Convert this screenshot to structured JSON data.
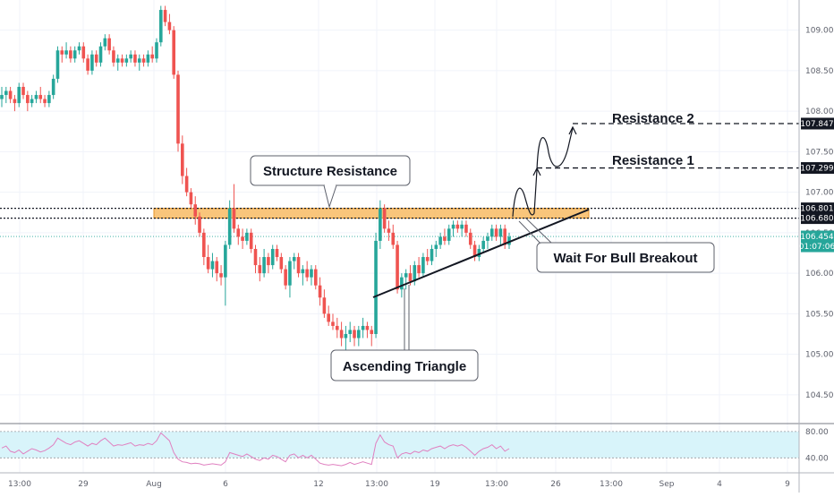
{
  "chart_data": {
    "type": "candlestick",
    "title": "",
    "ylim": [
      104.2,
      109.35
    ],
    "y_ticks": [
      "109.000",
      "108.500",
      "108.000",
      "107.500",
      "107.000",
      "106.500",
      "106.000",
      "105.500",
      "105.000",
      "104.500"
    ],
    "x_ticks": [
      "13:00",
      "29",
      "Aug",
      "6",
      "12",
      "13:00",
      "19",
      "13:00",
      "26",
      "13:00",
      "Sep",
      "4",
      "9"
    ],
    "price_tags": {
      "resistance_2": "107.847",
      "resistance_1": "107.299",
      "zone_top": "106.801",
      "zone_bottom": "106.680",
      "current_price": "106.454",
      "countdown": "01:07:06"
    },
    "levels": {
      "resistance_2": 107.847,
      "resistance_1": 107.299,
      "zone_top": 106.801,
      "zone_bottom": 106.68,
      "current_price": 106.454
    },
    "annotations": {
      "structure_resistance": "Structure Resistance",
      "ascending_triangle": "Ascending Triangle",
      "wait_breakout": "Wait For Bull Breakout",
      "resistance_1": "Resistance 1",
      "resistance_2": "Resistance 2"
    },
    "candles_ohlc": [
      [
        108.15,
        108.3,
        108.05,
        108.2
      ],
      [
        108.2,
        108.3,
        108.1,
        108.25
      ],
      [
        108.25,
        108.3,
        108.1,
        108.15
      ],
      [
        108.15,
        108.2,
        108.0,
        108.1
      ],
      [
        108.1,
        108.35,
        108.05,
        108.3
      ],
      [
        108.3,
        108.35,
        108.15,
        108.2
      ],
      [
        108.2,
        108.25,
        108.0,
        108.1
      ],
      [
        108.1,
        108.2,
        108.05,
        108.15
      ],
      [
        108.15,
        108.25,
        108.1,
        108.2
      ],
      [
        108.2,
        108.3,
        108.1,
        108.15
      ],
      [
        108.15,
        108.2,
        108.05,
        108.1
      ],
      [
        108.1,
        108.25,
        108.05,
        108.2
      ],
      [
        108.2,
        108.45,
        108.15,
        108.4
      ],
      [
        108.4,
        108.8,
        108.35,
        108.75
      ],
      [
        108.75,
        108.8,
        108.6,
        108.7
      ],
      [
        108.7,
        108.85,
        108.65,
        108.75
      ],
      [
        108.75,
        108.8,
        108.6,
        108.65
      ],
      [
        108.65,
        108.8,
        108.6,
        108.75
      ],
      [
        108.75,
        108.85,
        108.7,
        108.8
      ],
      [
        108.8,
        108.85,
        108.6,
        108.65
      ],
      [
        108.65,
        108.7,
        108.45,
        108.5
      ],
      [
        108.5,
        108.75,
        108.45,
        108.7
      ],
      [
        108.7,
        108.75,
        108.55,
        108.6
      ],
      [
        108.6,
        108.85,
        108.55,
        108.8
      ],
      [
        108.8,
        108.95,
        108.75,
        108.9
      ],
      [
        108.9,
        108.95,
        108.7,
        108.75
      ],
      [
        108.75,
        108.8,
        108.55,
        108.6
      ],
      [
        108.6,
        108.7,
        108.5,
        108.65
      ],
      [
        108.65,
        108.7,
        108.55,
        108.6
      ],
      [
        108.6,
        108.7,
        108.55,
        108.65
      ],
      [
        108.65,
        108.75,
        108.6,
        108.7
      ],
      [
        108.7,
        108.75,
        108.55,
        108.6
      ],
      [
        108.6,
        108.7,
        108.5,
        108.65
      ],
      [
        108.65,
        108.7,
        108.55,
        108.6
      ],
      [
        108.6,
        108.75,
        108.55,
        108.7
      ],
      [
        108.7,
        108.8,
        108.6,
        108.65
      ],
      [
        108.65,
        108.9,
        108.6,
        108.85
      ],
      [
        108.85,
        109.3,
        108.8,
        109.25
      ],
      [
        109.25,
        109.3,
        109.05,
        109.1
      ],
      [
        109.1,
        109.2,
        108.95,
        109.0
      ],
      [
        109.0,
        109.05,
        108.4,
        108.45
      ],
      [
        108.45,
        108.5,
        107.5,
        107.6
      ],
      [
        107.6,
        107.7,
        107.1,
        107.2
      ],
      [
        107.2,
        107.3,
        106.95,
        107.0
      ],
      [
        107.0,
        107.05,
        106.8,
        106.85
      ],
      [
        106.85,
        106.95,
        106.6,
        106.7
      ],
      [
        106.7,
        106.75,
        106.45,
        106.5
      ],
      [
        106.5,
        106.55,
        106.1,
        106.2
      ],
      [
        106.2,
        106.35,
        106.0,
        106.05
      ],
      [
        106.05,
        106.25,
        105.95,
        106.15
      ],
      [
        106.15,
        106.2,
        105.9,
        106.0
      ],
      [
        106.0,
        106.1,
        105.85,
        105.95
      ],
      [
        105.95,
        106.4,
        105.6,
        106.35
      ],
      [
        106.35,
        106.9,
        106.3,
        106.8
      ],
      [
        106.8,
        107.1,
        106.5,
        106.55
      ],
      [
        106.55,
        106.6,
        106.35,
        106.45
      ],
      [
        106.45,
        106.55,
        106.3,
        106.4
      ],
      [
        106.4,
        106.55,
        106.35,
        106.5
      ],
      [
        106.5,
        106.55,
        106.25,
        106.3
      ],
      [
        106.3,
        106.35,
        106.0,
        106.1
      ],
      [
        106.1,
        106.2,
        105.9,
        106.0
      ],
      [
        106.0,
        106.3,
        105.95,
        106.2
      ],
      [
        106.2,
        106.25,
        106.0,
        106.1
      ],
      [
        106.1,
        106.35,
        106.05,
        106.3
      ],
      [
        106.3,
        106.35,
        106.15,
        106.2
      ],
      [
        106.2,
        106.25,
        106.0,
        106.05
      ],
      [
        106.05,
        106.1,
        105.8,
        105.85
      ],
      [
        105.85,
        106.2,
        105.7,
        106.15
      ],
      [
        106.15,
        106.25,
        106.05,
        106.2
      ],
      [
        106.2,
        106.25,
        105.95,
        106.0
      ],
      [
        106.0,
        106.1,
        105.85,
        106.05
      ],
      [
        106.05,
        106.15,
        105.9,
        105.95
      ],
      [
        105.95,
        106.1,
        105.85,
        106.05
      ],
      [
        106.05,
        106.1,
        105.8,
        105.85
      ],
      [
        105.85,
        105.95,
        105.6,
        105.7
      ],
      [
        105.7,
        105.8,
        105.45,
        105.5
      ],
      [
        105.5,
        105.6,
        105.35,
        105.4
      ],
      [
        105.4,
        105.5,
        105.3,
        105.35
      ],
      [
        105.35,
        105.45,
        105.2,
        105.3
      ],
      [
        105.3,
        105.4,
        105.1,
        105.2
      ],
      [
        105.2,
        105.35,
        105.05,
        105.25
      ],
      [
        105.25,
        105.4,
        105.15,
        105.3
      ],
      [
        105.3,
        105.35,
        105.1,
        105.2
      ],
      [
        105.2,
        105.35,
        105.1,
        105.3
      ],
      [
        105.3,
        105.45,
        105.2,
        105.35
      ],
      [
        105.35,
        105.4,
        105.2,
        105.3
      ],
      [
        105.3,
        105.35,
        105.1,
        105.25
      ],
      [
        105.25,
        106.5,
        105.2,
        106.4
      ],
      [
        106.4,
        106.9,
        106.3,
        106.8
      ],
      [
        106.8,
        106.85,
        106.5,
        106.55
      ],
      [
        106.55,
        106.65,
        106.4,
        106.5
      ],
      [
        106.5,
        106.6,
        106.3,
        106.35
      ],
      [
        106.35,
        106.4,
        105.75,
        105.8
      ],
      [
        105.8,
        106.0,
        105.7,
        105.95
      ],
      [
        105.95,
        106.05,
        105.8,
        106.0
      ],
      [
        106.0,
        106.1,
        105.85,
        105.9
      ],
      [
        105.9,
        106.15,
        105.85,
        106.1
      ],
      [
        106.1,
        106.2,
        105.95,
        106.0
      ],
      [
        106.0,
        106.25,
        105.95,
        106.2
      ],
      [
        106.2,
        106.3,
        106.1,
        106.15
      ],
      [
        106.15,
        106.35,
        106.1,
        106.3
      ],
      [
        106.3,
        106.4,
        106.2,
        106.35
      ],
      [
        106.35,
        106.5,
        106.3,
        106.45
      ],
      [
        106.45,
        106.55,
        106.35,
        106.4
      ],
      [
        106.4,
        106.6,
        106.35,
        106.55
      ],
      [
        106.55,
        106.65,
        106.45,
        106.6
      ],
      [
        106.6,
        106.65,
        106.5,
        106.55
      ],
      [
        106.55,
        106.65,
        106.45,
        106.6
      ],
      [
        106.6,
        106.65,
        106.45,
        106.5
      ],
      [
        106.5,
        106.55,
        106.3,
        106.35
      ],
      [
        106.35,
        106.4,
        106.15,
        106.2
      ],
      [
        106.2,
        106.35,
        106.15,
        106.3
      ],
      [
        106.3,
        106.45,
        106.25,
        106.4
      ],
      [
        106.4,
        106.5,
        106.3,
        106.45
      ],
      [
        106.45,
        106.6,
        106.4,
        106.55
      ],
      [
        106.55,
        106.6,
        106.4,
        106.45
      ],
      [
        106.45,
        106.6,
        106.35,
        106.55
      ],
      [
        106.55,
        106.6,
        106.3,
        106.35
      ],
      [
        106.35,
        106.5,
        106.3,
        106.45
      ]
    ],
    "rsi_ylim": [
      20,
      88
    ],
    "rsi_levels": [
      80,
      40
    ],
    "rsi_ticks": [
      "80.00",
      "40.00"
    ],
    "rsi_values": [
      55,
      58,
      50,
      48,
      52,
      46,
      50,
      54,
      52,
      49,
      51,
      55,
      60,
      70,
      66,
      62,
      60,
      64,
      66,
      62,
      58,
      62,
      60,
      66,
      70,
      64,
      58,
      60,
      59,
      61,
      63,
      58,
      60,
      59,
      62,
      60,
      66,
      78,
      72,
      66,
      48,
      38,
      34,
      33,
      31,
      32,
      31,
      29,
      30,
      31,
      30,
      29,
      34,
      48,
      46,
      44,
      42,
      46,
      42,
      38,
      36,
      40,
      38,
      44,
      42,
      38,
      34,
      44,
      46,
      40,
      44,
      40,
      44,
      38,
      32,
      30,
      29,
      30,
      29,
      28,
      30,
      33,
      30,
      32,
      34,
      32,
      30,
      62,
      75,
      64,
      60,
      58,
      40,
      46,
      48,
      46,
      50,
      48,
      52,
      50,
      54,
      56,
      58,
      54,
      58,
      60,
      58,
      60,
      56,
      50,
      44,
      50,
      54,
      56,
      60,
      54,
      58,
      50,
      54
    ],
    "colors": {
      "up": "#26a69a",
      "down": "#ef5350",
      "zone": "#f7b24f",
      "rsi": "#e080c0",
      "rsi_band": "#d8f4fa"
    }
  }
}
